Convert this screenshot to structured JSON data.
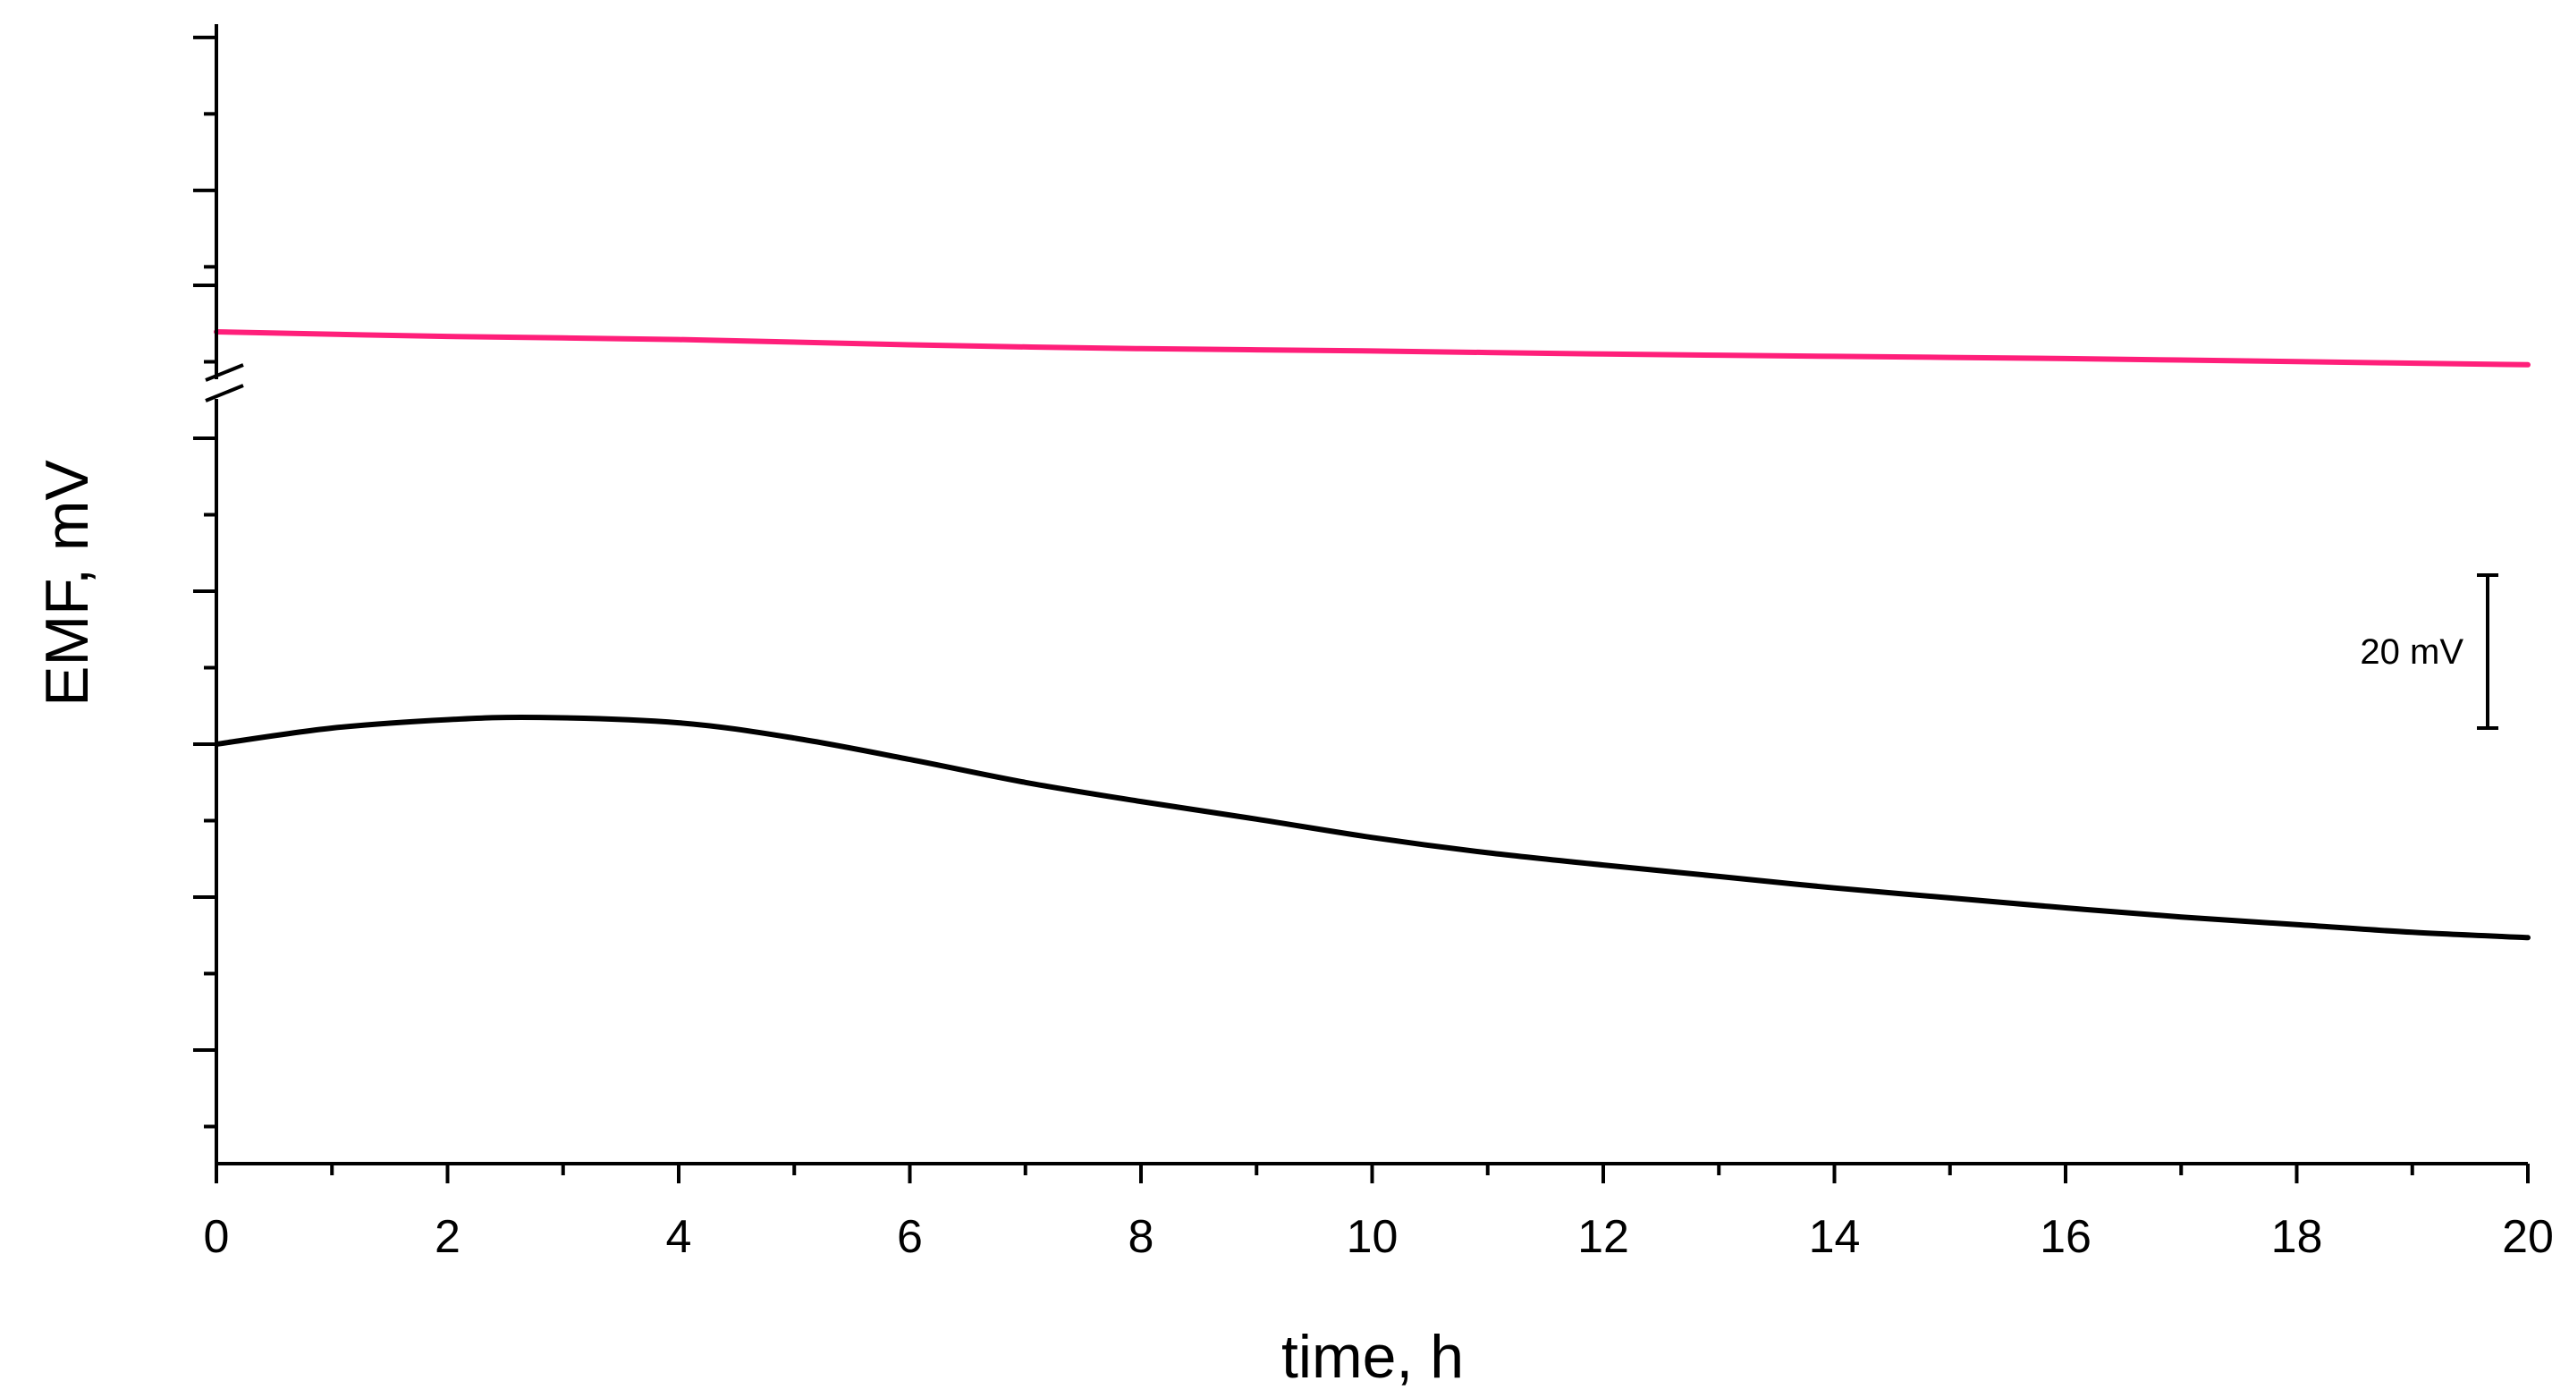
{
  "chart_data": {
    "type": "line",
    "xlabel": "time, h",
    "ylabel": "EMF, mV",
    "xlim": [
      0,
      20
    ],
    "x_ticks": [
      "0",
      "2",
      "4",
      "6",
      "8",
      "10",
      "12",
      "14",
      "16",
      "18",
      "20"
    ],
    "y_axis_break": true,
    "y_tick_labels_shown": false,
    "grid": false,
    "legend": "none",
    "scale_bar": {
      "label": "20 mV",
      "value_mV": 20
    },
    "series": [
      {
        "color": "#ff1f7a",
        "x": [
          0,
          2,
          4,
          6,
          8,
          10,
          12,
          14,
          16,
          18,
          20
        ],
        "y": [
          121.5,
          120.9,
          120.5,
          119.8,
          119.3,
          119.0,
          118.6,
          118.3,
          118.0,
          117.6,
          117.2
        ]
      },
      {
        "color": "#000000",
        "x": [
          0,
          1,
          2,
          2.8,
          4,
          5,
          6,
          7,
          8,
          9,
          10,
          11,
          12,
          13,
          14,
          15,
          16,
          17,
          18,
          19,
          20
        ],
        "y": [
          0,
          2.1,
          3.2,
          3.5,
          2.8,
          0.8,
          -2.0,
          -5.0,
          -7.5,
          -9.8,
          -12.2,
          -14.2,
          -15.8,
          -17.3,
          -18.8,
          -20.1,
          -21.4,
          -22.6,
          -23.6,
          -24.6,
          -25.3
        ]
      }
    ]
  }
}
